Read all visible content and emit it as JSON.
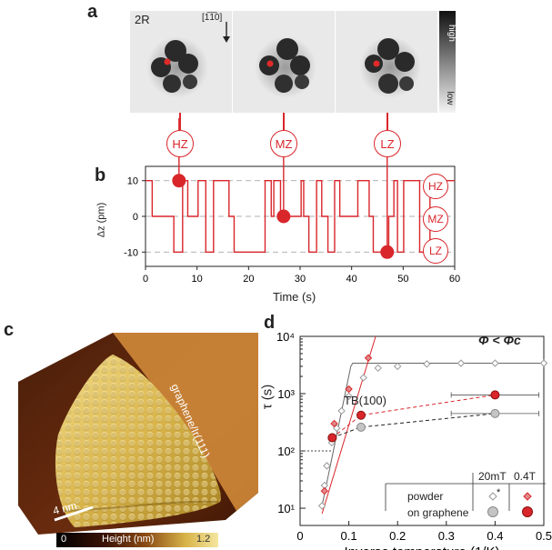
{
  "panel_a": {
    "label": "a",
    "structure_label": "2R",
    "direction": "[1̅1̅0]",
    "colorbar_high": "high",
    "colorbar_low": "low",
    "states": [
      "HZ",
      "MZ",
      "LZ"
    ]
  },
  "panel_b": {
    "label": "b"
  },
  "panel_c": {
    "label": "c",
    "substrate": "graphene/Ir(111)",
    "scalebar": "4 nm",
    "colorbar_min": "0",
    "colorbar_title": "Height (nm)",
    "colorbar_max": "1.2"
  },
  "panel_d": {
    "label": "d",
    "condition": "Φ < Φc",
    "tb_label": "TB(100)",
    "legend": {
      "col1": "20mT",
      "col2": "0.4T",
      "row1": "powder",
      "row2": "on graphene",
      "star": "*"
    }
  },
  "colors": {
    "red": "#d9262b",
    "grey_line": "#555555",
    "dark": "#222222"
  },
  "chart_data": [
    {
      "type": "line",
      "xlabel": "Time (s)",
      "ylabel": "Δz (pm)",
      "xlim": [
        0,
        60
      ],
      "ylim": [
        -14,
        14
      ],
      "xticks": [
        0,
        10,
        20,
        30,
        40,
        50,
        60
      ],
      "yticks": [
        10,
        0,
        -10
      ],
      "levels": {
        "HZ": 10,
        "MZ": 0,
        "LZ": -10
      },
      "trace": [
        [
          0,
          10
        ],
        [
          1.3,
          10
        ],
        [
          1.3,
          0
        ],
        [
          5.5,
          0
        ],
        [
          5.5,
          -10
        ],
        [
          7.2,
          -10
        ],
        [
          7.2,
          10
        ],
        [
          8.2,
          10
        ],
        [
          8.2,
          0
        ],
        [
          10.2,
          0
        ],
        [
          10.2,
          10
        ],
        [
          11.7,
          10
        ],
        [
          11.7,
          -10
        ],
        [
          13.2,
          -10
        ],
        [
          13.2,
          10
        ],
        [
          16.2,
          10
        ],
        [
          16.2,
          0
        ],
        [
          17.2,
          0
        ],
        [
          17.2,
          -10
        ],
        [
          23.2,
          -10
        ],
        [
          23.2,
          10
        ],
        [
          24.4,
          10
        ],
        [
          24.4,
          0
        ],
        [
          24.9,
          0
        ],
        [
          24.9,
          10
        ],
        [
          26.2,
          10
        ],
        [
          26.2,
          0
        ],
        [
          30.2,
          0
        ],
        [
          30.2,
          10
        ],
        [
          30.7,
          10
        ],
        [
          30.7,
          0
        ],
        [
          31.7,
          0
        ],
        [
          31.7,
          -10
        ],
        [
          33.2,
          -10
        ],
        [
          33.2,
          10
        ],
        [
          34.2,
          10
        ],
        [
          34.2,
          0
        ],
        [
          35.4,
          0
        ],
        [
          35.4,
          -10
        ],
        [
          36.7,
          -10
        ],
        [
          36.7,
          10
        ],
        [
          37.7,
          10
        ],
        [
          37.7,
          0
        ],
        [
          41.2,
          0
        ],
        [
          41.2,
          10
        ],
        [
          43.4,
          10
        ],
        [
          43.4,
          0
        ],
        [
          44.2,
          0
        ],
        [
          44.2,
          -10
        ],
        [
          47.2,
          -10
        ],
        [
          47.2,
          0
        ],
        [
          48.2,
          0
        ],
        [
          48.2,
          10
        ],
        [
          48.9,
          10
        ],
        [
          48.9,
          -10
        ],
        [
          50.1,
          -10
        ],
        [
          50.1,
          10
        ],
        [
          53.2,
          10
        ],
        [
          53.2,
          -10
        ],
        [
          55.2,
          -10
        ],
        [
          55.2,
          10
        ],
        [
          60,
          10
        ]
      ],
      "markers": [
        {
          "state": "HZ",
          "x": 6.5,
          "y": 10
        },
        {
          "state": "MZ",
          "x": 26.8,
          "y": 0
        },
        {
          "state": "LZ",
          "x": 46.9,
          "y": -10
        }
      ]
    },
    {
      "type": "scatter",
      "xlabel": "Inverse temperature (1/K)",
      "ylabel": "τ (s)",
      "xlim": [
        0,
        0.5
      ],
      "ylim": [
        5,
        10000
      ],
      "yscale": "log",
      "xticks": [
        0,
        0.1,
        0.2,
        0.3,
        0.4,
        0.5
      ],
      "yticks_labels": [
        "10⁴",
        "10³",
        "10²",
        "10¹"
      ],
      "series": [
        {
          "name": "powder 20mT",
          "color": "#aaaaaa",
          "marker": "diamond-open",
          "points": [
            [
              0.045,
              11
            ],
            [
              0.05,
              25
            ],
            [
              0.055,
              55
            ],
            [
              0.065,
              140
            ],
            [
              0.075,
              250
            ],
            [
              0.085,
              500
            ],
            [
              0.1,
              900
            ],
            [
              0.13,
              1900
            ],
            [
              0.16,
              2800
            ],
            [
              0.2,
              3000
            ],
            [
              0.26,
              3300
            ],
            [
              0.33,
              3400
            ],
            [
              0.4,
              3400
            ],
            [
              0.5,
              3400
            ]
          ]
        },
        {
          "name": "powder 0.4T",
          "color": "#d9262b",
          "marker": "diamond",
          "points": [
            [
              0.05,
              20
            ],
            [
              0.07,
              300
            ],
            [
              0.1,
              1200
            ],
            [
              0.14,
              4200
            ]
          ]
        },
        {
          "name": "on graphene 20mT",
          "color": "#aaaaaa",
          "marker": "circle",
          "points": [
            [
              0.066,
              170
            ],
            [
              0.125,
              260
            ],
            [
              0.4,
              450
            ]
          ],
          "xerr": [
            0,
            0,
            0.09
          ]
        },
        {
          "name": "on graphene 0.4T",
          "color": "#d9262b",
          "marker": "circle",
          "points": [
            [
              0.066,
              170
            ],
            [
              0.125,
              420
            ],
            [
              0.4,
              950
            ]
          ],
          "xerr": [
            0,
            0,
            0.09
          ]
        }
      ],
      "guide_y": 100
    }
  ]
}
